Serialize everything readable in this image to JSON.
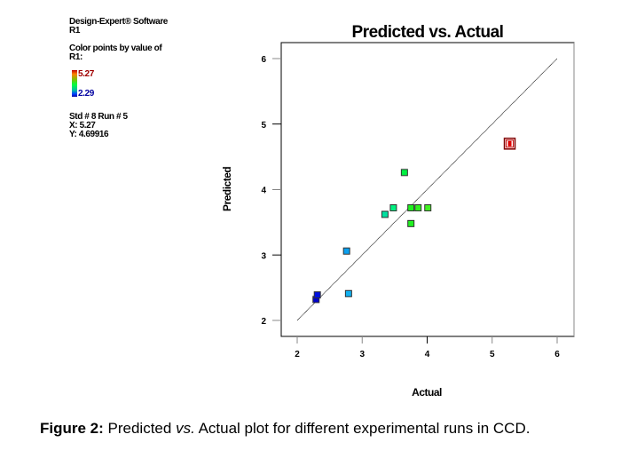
{
  "info": {
    "software": "Design-Expert® Software",
    "response": "R1",
    "color_by": "Color points by value of",
    "color_by_var": "R1:",
    "legend_high": "5.27",
    "legend_low": "2.29",
    "selected_std_run": "Std # 8 Run # 5",
    "selected_x": "X: 5.27",
    "selected_y": "Y: 4.69916"
  },
  "caption": {
    "label": "Figure 2:",
    "text_before": " Predicted ",
    "italic": "vs.",
    "text_after": " Actual plot for different experimental runs in CCD."
  },
  "chart_data": {
    "type": "scatter",
    "title": "Predicted vs. Actual",
    "xlabel": "Actual",
    "ylabel": "Predicted",
    "xlim": [
      1.75,
      6.25
    ],
    "ylim": [
      1.75,
      6.25
    ],
    "xticks": [
      "2",
      "3",
      "4",
      "5",
      "6"
    ],
    "yticks": [
      "2",
      "3",
      "4",
      "5",
      "6"
    ],
    "grid": false,
    "reference_line": {
      "from": [
        2,
        2
      ],
      "to": [
        6,
        6
      ]
    },
    "color_scale": {
      "min": 2.29,
      "max": 5.27,
      "low_color": "#0000c0",
      "high_color": "#c00000"
    },
    "points": [
      {
        "x": 2.29,
        "y": 2.32,
        "color": "#0000cc"
      },
      {
        "x": 2.31,
        "y": 2.39,
        "color": "#0010e0"
      },
      {
        "x": 2.76,
        "y": 3.06,
        "color": "#0aa0f0"
      },
      {
        "x": 2.79,
        "y": 2.41,
        "color": "#10b0f0"
      },
      {
        "x": 3.35,
        "y": 3.62,
        "color": "#00e0a0"
      },
      {
        "x": 3.48,
        "y": 3.72,
        "color": "#00f080"
      },
      {
        "x": 3.65,
        "y": 4.26,
        "color": "#00f040"
      },
      {
        "x": 3.75,
        "y": 3.72,
        "color": "#20f020"
      },
      {
        "x": 3.75,
        "y": 3.48,
        "color": "#20f020"
      },
      {
        "x": 3.86,
        "y": 3.72,
        "color": "#30f020"
      },
      {
        "x": 4.01,
        "y": 3.72,
        "color": "#40f020"
      },
      {
        "x": 5.27,
        "y": 4.7,
        "color": "#e00000",
        "selected": true
      }
    ]
  }
}
